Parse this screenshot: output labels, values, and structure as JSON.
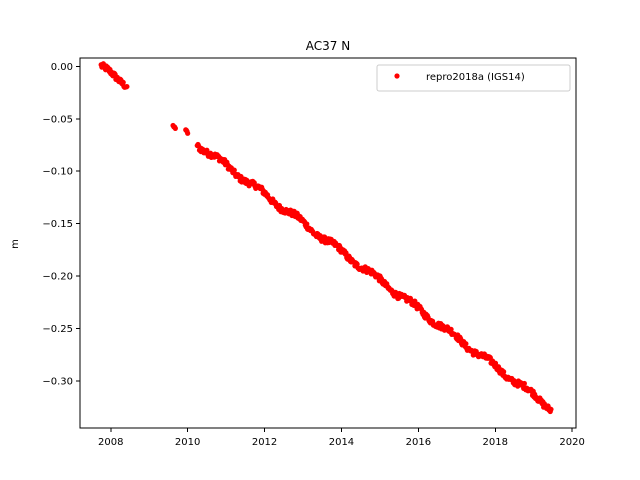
{
  "chart_data": {
    "type": "scatter",
    "title": "AC37 N",
    "xlabel": "",
    "ylabel": "m",
    "xlim": [
      2007.2,
      2020.1
    ],
    "ylim": [
      -0.345,
      0.008
    ],
    "x_ticks": [
      2008,
      2010,
      2012,
      2014,
      2016,
      2018,
      2020
    ],
    "x_tick_labels": [
      "2008",
      "2010",
      "2012",
      "2014",
      "2016",
      "2018",
      "2020"
    ],
    "y_ticks": [
      0.0,
      -0.05,
      -0.1,
      -0.15,
      -0.2,
      -0.25,
      -0.3
    ],
    "y_tick_labels": [
      "0.00",
      "−0.05",
      "−0.10",
      "−0.15",
      "−0.20",
      "−0.25",
      "−0.30"
    ],
    "grid": false,
    "legend_position": "top-right",
    "series": [
      {
        "name": "repro2018a (IGS14)",
        "color": "#ff0000",
        "marker": "dot",
        "segments": [
          {
            "x_start": 2007.75,
            "x_end": 2008.42,
            "y_start": -0.001,
            "y_end": -0.017,
            "noise": 0.004
          },
          {
            "x_start": 2009.62,
            "x_end": 2009.68,
            "y_start": -0.057,
            "y_end": -0.059,
            "noise": 0.001
          },
          {
            "x_start": 2009.95,
            "x_end": 2010.0,
            "y_start": -0.061,
            "y_end": -0.064,
            "noise": 0.001
          },
          {
            "x_start": 2010.25,
            "x_end": 2019.45,
            "y_start": -0.074,
            "y_end": -0.326,
            "noise": 0.004
          }
        ]
      }
    ]
  }
}
